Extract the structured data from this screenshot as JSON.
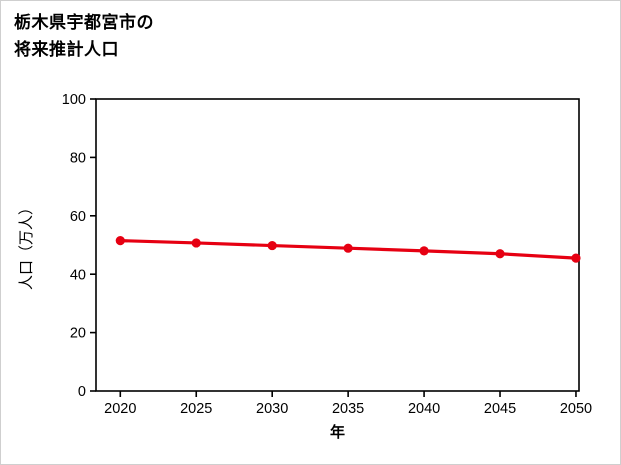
{
  "title": {
    "line1": "栃木県宇都宮市の",
    "line2": "将来推計人口"
  },
  "chart_data": {
    "type": "line",
    "title": "栃木県宇都宮市の将来推計人口",
    "x": [
      2020,
      2025,
      2030,
      2035,
      2040,
      2045,
      2050
    ],
    "series": [
      {
        "name": "将来推計人口",
        "values": [
          51.5,
          50.7,
          49.8,
          48.9,
          48.0,
          47.0,
          45.5
        ]
      }
    ],
    "xlabel": "年",
    "ylabel": "人口（万人）",
    "xlim": [
      2018.4,
      2050.2
    ],
    "ylim": [
      0,
      100
    ],
    "xticks": [
      2020,
      2025,
      2030,
      2035,
      2040,
      2045,
      2050
    ],
    "yticks": [
      0,
      20,
      40,
      60,
      80,
      100
    ],
    "grid": false,
    "legend": "none",
    "line_color": "#e60012",
    "marker": "circle",
    "axis_color": "#000000",
    "background_color": "#ffffff"
  }
}
